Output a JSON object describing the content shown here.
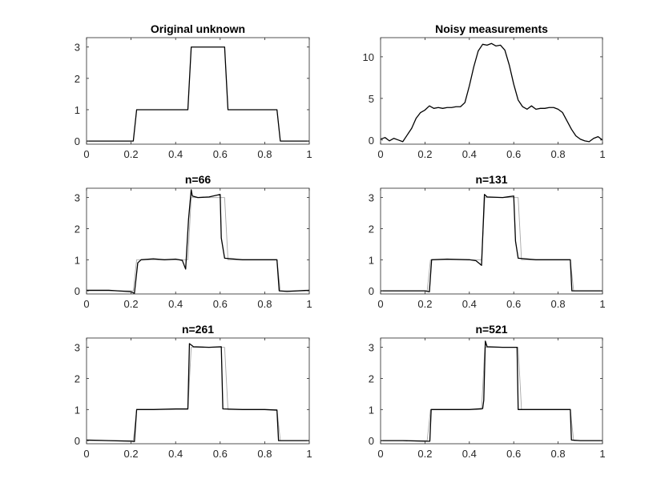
{
  "chart_data": [
    {
      "type": "line",
      "title": "Original unknown",
      "xlim": [
        0,
        1
      ],
      "ylim": [
        -0.1,
        3.3
      ],
      "xticks": [
        0,
        0.2,
        0.4,
        0.6,
        0.8,
        1
      ],
      "xtick_labels": [
        "0",
        "0.2",
        "0.4",
        "0.6",
        "0.8",
        "1"
      ],
      "yticks": [
        0,
        1,
        2,
        3
      ],
      "ytick_labels": [
        "0",
        "1",
        "2",
        "3"
      ],
      "series": [
        {
          "x": [
            0,
            0.21,
            0.225,
            0.455,
            0.47,
            0.62,
            0.635,
            0.855,
            0.87,
            1
          ],
          "y": [
            0,
            0,
            1,
            1,
            3,
            3,
            1,
            1,
            0,
            0
          ],
          "color": "#000000",
          "width": 1.3
        }
      ]
    },
    {
      "type": "line",
      "title": "Noisy measurements",
      "xlim": [
        0,
        1
      ],
      "ylim": [
        -0.5,
        12.3
      ],
      "xticks": [
        0,
        0.2,
        0.4,
        0.6,
        0.8,
        1
      ],
      "xtick_labels": [
        "0",
        "0.2",
        "0.4",
        "0.6",
        "0.8",
        "1"
      ],
      "yticks": [
        0,
        5,
        10
      ],
      "ytick_labels": [
        "0",
        "5",
        "10"
      ],
      "series": [
        {
          "x": [
            0,
            0.02,
            0.04,
            0.06,
            0.08,
            0.1,
            0.12,
            0.14,
            0.16,
            0.18,
            0.2,
            0.22,
            0.24,
            0.26,
            0.28,
            0.3,
            0.32,
            0.34,
            0.36,
            0.38,
            0.4,
            0.42,
            0.44,
            0.46,
            0.48,
            0.5,
            0.52,
            0.54,
            0.56,
            0.58,
            0.6,
            0.62,
            0.64,
            0.66,
            0.68,
            0.7,
            0.72,
            0.74,
            0.76,
            0.78,
            0.8,
            0.82,
            0.84,
            0.86,
            0.88,
            0.9,
            0.92,
            0.94,
            0.96,
            0.98,
            1
          ],
          "y": [
            0.1,
            0.3,
            -0.1,
            0.2,
            0.0,
            -0.2,
            0.6,
            1.4,
            2.6,
            3.3,
            3.6,
            4.1,
            3.8,
            3.9,
            3.8,
            3.9,
            3.9,
            4.0,
            4.0,
            4.5,
            6.5,
            8.8,
            10.7,
            11.5,
            11.4,
            11.6,
            11.3,
            11.4,
            10.8,
            9.0,
            6.7,
            4.8,
            4.0,
            3.7,
            4.1,
            3.7,
            3.8,
            3.8,
            3.9,
            3.9,
            3.7,
            3.3,
            2.3,
            1.3,
            0.5,
            0.1,
            -0.1,
            -0.2,
            0.2,
            0.4,
            0.0
          ],
          "color": "#000000",
          "width": 1.3
        }
      ]
    },
    {
      "type": "line",
      "title": "n=66",
      "xlim": [
        0,
        1
      ],
      "ylim": [
        -0.1,
        3.3
      ],
      "xticks": [
        0,
        0.2,
        0.4,
        0.6,
        0.8,
        1
      ],
      "xtick_labels": [
        "0",
        "0.2",
        "0.4",
        "0.6",
        "0.8",
        "1"
      ],
      "yticks": [
        0,
        1,
        2,
        3
      ],
      "ytick_labels": [
        "0",
        "1",
        "2",
        "3"
      ],
      "series": [
        {
          "x": [
            0,
            0.21,
            0.225,
            0.455,
            0.47,
            0.62,
            0.635,
            0.855,
            0.87,
            1
          ],
          "y": [
            0,
            0,
            1,
            1,
            3,
            3,
            1,
            1,
            0,
            0
          ],
          "color": "#a6a6a6",
          "width": 0.9
        },
        {
          "x": [
            0,
            0.1,
            0.2,
            0.215,
            0.23,
            0.245,
            0.3,
            0.35,
            0.4,
            0.43,
            0.445,
            0.458,
            0.47,
            0.475,
            0.5,
            0.55,
            0.6,
            0.605,
            0.62,
            0.7,
            0.8,
            0.855,
            0.865,
            0.9,
            1
          ],
          "y": [
            0.02,
            0.02,
            -0.03,
            -0.08,
            0.9,
            1.0,
            1.03,
            1.0,
            1.02,
            0.98,
            0.7,
            2.3,
            3.25,
            3.05,
            3.0,
            3.02,
            3.1,
            1.7,
            1.05,
            1.0,
            1.0,
            1.0,
            0.0,
            -0.02,
            0.02
          ],
          "color": "#000000",
          "width": 1.3
        }
      ]
    },
    {
      "type": "line",
      "title": "n=131",
      "xlim": [
        0,
        1
      ],
      "ylim": [
        -0.1,
        3.3
      ],
      "xticks": [
        0,
        0.2,
        0.4,
        0.6,
        0.8,
        1
      ],
      "xtick_labels": [
        "0",
        "0.2",
        "0.4",
        "0.6",
        "0.8",
        "1"
      ],
      "yticks": [
        0,
        1,
        2,
        3
      ],
      "ytick_labels": [
        "0",
        "1",
        "2",
        "3"
      ],
      "series": [
        {
          "x": [
            0,
            0.21,
            0.225,
            0.455,
            0.47,
            0.62,
            0.635,
            0.855,
            0.87,
            1
          ],
          "y": [
            0,
            0,
            1,
            1,
            3,
            3,
            1,
            1,
            0,
            0
          ],
          "color": "#a6a6a6",
          "width": 0.9
        },
        {
          "x": [
            0,
            0.1,
            0.2,
            0.22,
            0.23,
            0.3,
            0.4,
            0.43,
            0.455,
            0.468,
            0.48,
            0.55,
            0.6,
            0.608,
            0.62,
            0.7,
            0.8,
            0.855,
            0.862,
            0.9,
            1
          ],
          "y": [
            0.0,
            0.0,
            0.0,
            -0.03,
            1.0,
            1.02,
            1.0,
            0.97,
            0.82,
            3.1,
            3.02,
            3.0,
            3.05,
            1.6,
            1.05,
            1.0,
            1.0,
            1.0,
            0.0,
            0.0,
            0.0
          ],
          "color": "#000000",
          "width": 1.3
        }
      ]
    },
    {
      "type": "line",
      "title": "n=261",
      "xlim": [
        0,
        1
      ],
      "ylim": [
        -0.1,
        3.3
      ],
      "xticks": [
        0,
        0.2,
        0.4,
        0.6,
        0.8,
        1
      ],
      "xtick_labels": [
        "0",
        "0.2",
        "0.4",
        "0.6",
        "0.8",
        "1"
      ],
      "yticks": [
        0,
        1,
        2,
        3
      ],
      "ytick_labels": [
        "0",
        "1",
        "2",
        "3"
      ],
      "series": [
        {
          "x": [
            0,
            0.21,
            0.225,
            0.455,
            0.47,
            0.62,
            0.635,
            0.855,
            0.87,
            1
          ],
          "y": [
            0,
            0,
            1,
            1,
            3,
            3,
            1,
            1,
            0,
            0
          ],
          "color": "#a6a6a6",
          "width": 0.9
        },
        {
          "x": [
            0,
            0.1,
            0.2,
            0.215,
            0.225,
            0.3,
            0.4,
            0.455,
            0.462,
            0.48,
            0.55,
            0.605,
            0.612,
            0.7,
            0.8,
            0.855,
            0.862,
            0.9,
            1
          ],
          "y": [
            0.02,
            0.0,
            -0.02,
            -0.03,
            1.0,
            1.0,
            1.02,
            1.02,
            3.12,
            3.02,
            3.0,
            3.02,
            1.02,
            1.0,
            1.0,
            0.98,
            0.0,
            0.0,
            0.0
          ],
          "color": "#000000",
          "width": 1.3
        }
      ]
    },
    {
      "type": "line",
      "title": "n=521",
      "xlim": [
        0,
        1
      ],
      "ylim": [
        -0.1,
        3.3
      ],
      "xticks": [
        0,
        0.2,
        0.4,
        0.6,
        0.8,
        1
      ],
      "xtick_labels": [
        "0",
        "0.2",
        "0.4",
        "0.6",
        "0.8",
        "1"
      ],
      "yticks": [
        0,
        1,
        2,
        3
      ],
      "ytick_labels": [
        "0",
        "1",
        "2",
        "3"
      ],
      "series": [
        {
          "x": [
            0,
            0.21,
            0.225,
            0.455,
            0.47,
            0.62,
            0.635,
            0.855,
            0.87,
            1
          ],
          "y": [
            0,
            0,
            1,
            1,
            3,
            3,
            1,
            1,
            0,
            0
          ],
          "color": "#a6a6a6",
          "width": 0.9
        },
        {
          "x": [
            0,
            0.1,
            0.2,
            0.222,
            0.228,
            0.3,
            0.4,
            0.46,
            0.465,
            0.472,
            0.48,
            0.55,
            0.615,
            0.62,
            0.7,
            0.8,
            0.855,
            0.86,
            0.9,
            1
          ],
          "y": [
            0.0,
            0.0,
            -0.02,
            -0.02,
            1.0,
            1.0,
            1.0,
            1.03,
            1.3,
            3.2,
            3.02,
            3.0,
            3.0,
            1.0,
            1.0,
            1.0,
            1.0,
            0.02,
            0.0,
            0.0
          ],
          "color": "#000000",
          "width": 1.3
        }
      ]
    }
  ]
}
